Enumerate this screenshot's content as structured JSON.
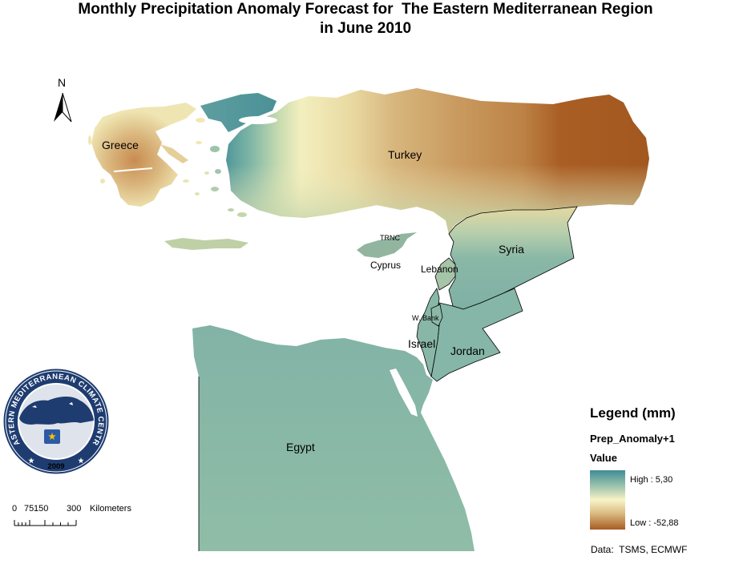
{
  "title": {
    "line1": "Monthly Precipitation Anomaly Forecast for  The Eastern Mediterranean Region",
    "line2": "in June 2010"
  },
  "north_arrow": {
    "label": "N"
  },
  "map": {
    "labels": {
      "greece": "Greece",
      "turkey": "Turkey",
      "trnc": "TRNC",
      "cyprus": "Cyprus",
      "lebanon": "Lebanon",
      "syria": "Syria",
      "west_bank": "W. Bank",
      "israel": "Israel",
      "jordan": "Jordan",
      "egypt": "Egypt"
    }
  },
  "scale_bar": {
    "ticks": [
      "0",
      "75",
      "150",
      "300"
    ],
    "unit": "Kilometers"
  },
  "legend": {
    "title": "Legend (mm)",
    "layer": "Prep_Anomaly+1",
    "field": "Value",
    "high": "High : 5,30",
    "low": "Low : -52,88",
    "colors": {
      "high": "#3f8d96",
      "mid": "#f7f4c6",
      "low": "#a65d24"
    }
  },
  "credit": "Data:  TSMS, ECMWF",
  "logo": {
    "ring_text": "EASTERN MEDITERRANEAN CLIMATE CENTRE",
    "year": "2009"
  }
}
